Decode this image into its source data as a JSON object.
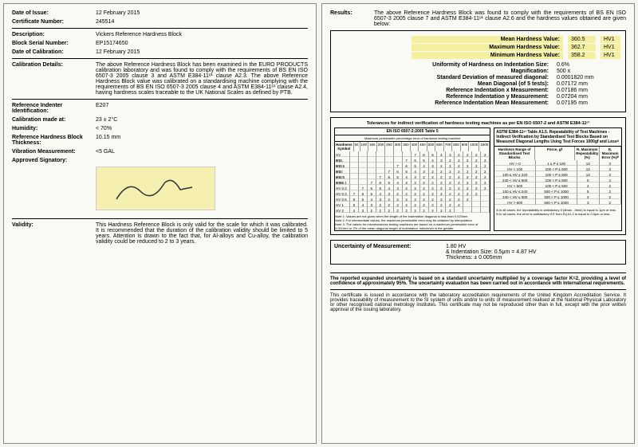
{
  "left": {
    "dateOfIssue": {
      "label": "Date of Issue:",
      "value": "12 February 2015"
    },
    "certNumber": {
      "label": "Certificate Number:",
      "value": "245514"
    },
    "description": {
      "label": "Description:",
      "value": "Vickers Reference Hardness Block"
    },
    "serial": {
      "label": "Block Serial Number:",
      "value": "EP15174650"
    },
    "dateCalib": {
      "label": "Date of Calibration:",
      "value": "12 February 2015"
    },
    "calibDetails": {
      "label": "Calibration Details:",
      "value": "The above Reference Hardness Block has been examined in the EURO PRODUCTS calibration laboratory and was found to comply with the requirements of BS EN ISO 6507-3 2005 clause 3 and ASTM E384-11ᵉ¹ clause A2.3. The above Reference Hardness Block value was calibrated on a standardising machine complying with the requirements of BS EN ISO 6507-3 2005 clause 4 and ASTM E384-11ᵉ¹ clause A2.4, having hardness scales traceable to the UK National Scales as defined by PTB."
    },
    "indenter": {
      "label": "Reference Indenter Identification:",
      "value": "E207"
    },
    "calibAt": {
      "label": "Calibration made at:",
      "value": "23 ± 2°C"
    },
    "humidity": {
      "label": "Humidity:",
      "value": "< 70%"
    },
    "thickness": {
      "label": "Reference Hardness Block Thickness:",
      "value": "10.15 mm"
    },
    "vibration": {
      "label": "Vibration Measurement:",
      "value": "<5 GAL"
    },
    "signatory": {
      "label": "Approved Signatory:"
    },
    "validity": {
      "label": "Validity:",
      "value": "This Hardness Reference Block is only valid for the scale for which it was calibrated. It is recommended that the duration of the calibration validity should be limited to 5 years. Attention is drawn to the fact that, for Al-alloys and Cu-alloy, the calibration validity could be reduced to 2 to 3 years."
    }
  },
  "right": {
    "results": {
      "label": "Results:",
      "intro": "The above Reference Hardness Block was found to comply with the requirements of BS EN ISO 6507-3 2005 clause 7 and ASTM E384-11ᵉ¹ clause A2.6 and the hardness values obtained are given below:"
    },
    "mean": {
      "label": "Mean Hardness Value:",
      "value": "360.5",
      "unit": "HV1"
    },
    "max": {
      "label": "Maximum Hardness Value:",
      "value": "362.7",
      "unit": "HV1"
    },
    "min": {
      "label": "Minimum Hardness Value:",
      "value": "358.2",
      "unit": "HV1"
    },
    "uniformity": {
      "label": "Uniformity of Hardness on Indentation Size:",
      "value": "0.6%"
    },
    "magnification": {
      "label": "Magnification:",
      "value": "500 x"
    },
    "stddev": {
      "label": "Standard Deviation of measured diagonal:",
      "value": "0.0001820 mm"
    },
    "meanDiag": {
      "label": "Mean Diagonal (of 5 tests):",
      "value": "0.07172 mm"
    },
    "refX": {
      "label": "Reference Indentation x Measurement:",
      "value": "0.07186 mm"
    },
    "refY": {
      "label": "Reference Indentation y Measurement:",
      "value": "0.07204 mm"
    },
    "refMean": {
      "label": "Reference Indentation Mean Measurement:",
      "value": "0.07195 mm"
    },
    "tolTitle": "Tolerances for indirect verification of hardness testing machines as per EN ISO 6507-2 and ASTM E384-11ᵉ¹",
    "t1": {
      "title": "EN ISO 6507-2:2005 Table 5",
      "sub": "Maximum permissible percentage error of hardness testing machine",
      "symbol": "Hardness Symbol",
      "rows": [
        "HV 0.01",
        "HV 0.015",
        "HV 0.02",
        "HV 0.025",
        "HV 0.05",
        "HV 0.1",
        "HV 0.2",
        "HV 0.3",
        "HV 0.5",
        "HV 1",
        "HV 2"
      ],
      "cols": [
        "50",
        "100",
        "150",
        "200",
        "250",
        "300",
        "350",
        "400",
        "450",
        "500",
        "600",
        "700",
        "800",
        "900",
        "1000",
        "1500"
      ],
      "note1": "Note 1: Values are not given when the length of the indentation diagonal is less than 0.020mm",
      "note2": "Note 2: For intermediate values, the maximum permissible error may be obtained by interpolation",
      "note3": "Note 3: The values for microhardness testing machines are based on a maximum permissible error of 0.001mm or 2% of the mean diagonal length of indentation, whichever is the greater."
    },
    "t2": {
      "title": "ASTM E384-11ᵉ¹ Table A1.5. Repeatability of Test Machines - Indirect Verification by Standardised Test Blocks Based on Measured Diagonal Lengths Using Test Forces 1000gf and Lessᴬ",
      "h1": "Hardness Range of Standardised Test Blocks",
      "h2": "Force, gf",
      "h3": "R, Maximum Repeatability (%)",
      "h4": "E, Maximum Error (%)ᴮ",
      "rows": [
        [
          "HV > 0",
          "1 ≤ P ≤ 100",
          "13",
          "3"
        ],
        [
          "HV < 100",
          "100 < P ≤ 500",
          "13",
          "3"
        ],
        [
          "100 ≤ HV ≤ 240",
          "100 < P ≤ 500",
          "13",
          "2"
        ],
        [
          "240 < HV ≤ 600",
          "100 < P ≤ 500",
          "5",
          "2"
        ],
        [
          "HV > 600",
          "100 < P ≤ 500",
          "4",
          "2"
        ],
        [
          "100 ≤ HV ≤ 240",
          "500 < P ≤ 1000",
          "5",
          "2"
        ],
        [
          "240 < HV ≤ 600",
          "500 < P ≤ 1000",
          "4",
          "2"
        ],
        [
          "HV > 600",
          "500 < P ≤ 1000",
          "3",
          "2"
        ]
      ],
      "footA": "A In all cases, the repeatability is satisfactory if (d̄max - d̄min) is equal to 1μm or less.",
      "footB": "B In all cases, the error is satisfactory if E from Eq A1.2 is equal to 0.5μm or less."
    },
    "unc": {
      "label": "Uncertainty of Measurement:",
      "v1": "1.80 HV",
      "v2": "& Indentation Size: 0.5μm = 4.87 HV",
      "v3": "Thickness: ± 0.005mm"
    },
    "footer": {
      "p1": "The reported expanded uncertainty is based on a standard uncertainty multiplied by a coverage factor K=2, providing a level of confidence of approximately 95%. The uncertainty evaluation has been carried out in accordance with International requirements.",
      "p2": "This certificate is issued in accordance with the laboratory accreditation requirements of the United Kingdom Accreditation Service. It provides traceability of measurement to the SI system of units and/or to units of measurement realised at the National Physical Laboratory or other recognised national metrology institutes. This certificate may not be reproduced other than in full, except with the prior written approval of the issuing laboratory."
    }
  }
}
